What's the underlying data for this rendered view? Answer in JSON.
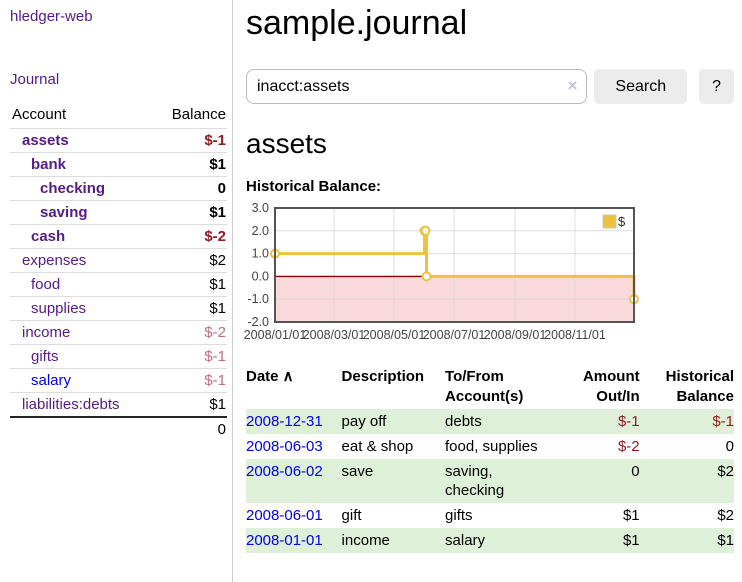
{
  "colors": {
    "link_purple": "#551a8b",
    "link_blue": "#0000ee",
    "negative_strong": "#8f1d21",
    "negative_soft": "#c1707c",
    "row_green": "#dff0d8",
    "button_bg": "#ececec",
    "chart_line_gold": "#edc240",
    "chart_negative_fill": "#f9d9d9",
    "chart_zero_line": "#8b0000",
    "chart_border": "#545454",
    "chart_grid": "#dcdcdc"
  },
  "sidebar": {
    "app_title": "hledger-web",
    "journal_link": "Journal",
    "accounts_table": {
      "headers": [
        "Account",
        "Balance"
      ],
      "rows": [
        {
          "account": "assets",
          "balance": "$-1",
          "indent": 1,
          "bold": true,
          "balance_style": "negative_strong"
        },
        {
          "account": "bank",
          "balance": "$1",
          "indent": 2,
          "bold": true,
          "balance_style": "normal"
        },
        {
          "account": "checking",
          "balance": "0",
          "indent": 3,
          "bold": true,
          "balance_style": "normal"
        },
        {
          "account": "saving",
          "balance": "$1",
          "indent": 3,
          "bold": true,
          "balance_style": "normal"
        },
        {
          "account": "cash",
          "balance": "$-2",
          "indent": 2,
          "bold": true,
          "balance_style": "negative_strong"
        },
        {
          "account": "expenses",
          "balance": "$2",
          "indent": 1,
          "bold": false,
          "balance_style": "normal"
        },
        {
          "account": "food",
          "balance": "$1",
          "indent": 2,
          "bold": false,
          "balance_style": "normal"
        },
        {
          "account": "supplies",
          "balance": "$1",
          "indent": 2,
          "bold": false,
          "balance_style": "normal"
        },
        {
          "account": "income",
          "balance": "$-2",
          "indent": 1,
          "bold": false,
          "balance_style": "negative_soft"
        },
        {
          "account": "gifts",
          "balance": "$-1",
          "indent": 2,
          "bold": false,
          "balance_style": "negative_soft"
        },
        {
          "account": "salary",
          "balance": "$-1",
          "indent": 2,
          "bold": false,
          "balance_style": "negative_soft",
          "link_style": "blue"
        },
        {
          "account": "liabilities:debts",
          "balance": "$1",
          "indent": 1,
          "bold": false,
          "balance_style": "normal"
        }
      ],
      "total": "0"
    }
  },
  "header": {
    "title": "sample.journal",
    "search": {
      "value": "inacct:assets",
      "clear_icon": "×",
      "button_label": "Search",
      "help_label": "?"
    }
  },
  "main": {
    "account_heading": "assets",
    "chart_title": "Historical Balance:"
  },
  "chart_data": {
    "type": "line",
    "step": true,
    "title": "Historical Balance of assets",
    "grid": true,
    "negative_region_shaded": true,
    "legend_position": "top-right",
    "legend": [
      {
        "label": "$",
        "color": "#edc240"
      }
    ],
    "ylim": [
      -2,
      3
    ],
    "yticks": [
      {
        "value": 3,
        "label": "3.0"
      },
      {
        "value": 2,
        "label": "2.0"
      },
      {
        "value": 1,
        "label": "1.0"
      },
      {
        "value": 0,
        "label": "0.0"
      },
      {
        "value": -1,
        "label": "-1.0"
      },
      {
        "value": -2,
        "label": "-2.0"
      }
    ],
    "xrange": [
      "2008-01-01",
      "2008-12-31"
    ],
    "xticks": [
      {
        "date": "2008-01-01",
        "label": "2008/01/01"
      },
      {
        "date": "2008-03-01",
        "label": "2008/03/01"
      },
      {
        "date": "2008-05-01",
        "label": "2008/05/01"
      },
      {
        "date": "2008-07-01",
        "label": "2008/07/01"
      },
      {
        "date": "2008-09-01",
        "label": "2008/09/01"
      },
      {
        "date": "2008-11-01",
        "label": "2008/11/01"
      }
    ],
    "series": [
      {
        "name": "$",
        "points": [
          [
            "2008-01-01",
            1
          ],
          [
            "2008-06-01",
            2
          ],
          [
            "2008-06-02",
            2
          ],
          [
            "2008-06-03",
            0
          ],
          [
            "2008-12-31",
            -1
          ]
        ]
      }
    ]
  },
  "register_table": {
    "columns": [
      {
        "label": "Date",
        "sort_indicator": "∧",
        "align": "left"
      },
      {
        "label": "Description",
        "align": "left"
      },
      {
        "label": "To/From Account(s)",
        "align": "left"
      },
      {
        "label": "Amount Out/In",
        "align": "right"
      },
      {
        "label": "Historical Balance",
        "align": "right"
      }
    ],
    "rows": [
      {
        "date": "2008-12-31",
        "description": "pay off",
        "accounts": "debts",
        "amount": "$-1",
        "amount_negative": true,
        "balance": "$-1",
        "balance_negative": true,
        "highlight": true
      },
      {
        "date": "2008-06-03",
        "description": "eat & shop",
        "accounts": "food, supplies",
        "amount": "$-2",
        "amount_negative": true,
        "balance": "0",
        "balance_negative": false,
        "highlight": false
      },
      {
        "date": "2008-06-02",
        "description": "save",
        "accounts": "saving, checking",
        "amount": "0",
        "amount_negative": false,
        "balance": "$2",
        "balance_negative": false,
        "highlight": true
      },
      {
        "date": "2008-06-01",
        "description": "gift",
        "accounts": "gifts",
        "amount": "$1",
        "amount_negative": false,
        "balance": "$2",
        "balance_negative": false,
        "highlight": false
      },
      {
        "date": "2008-01-01",
        "description": "income",
        "accounts": "salary",
        "amount": "$1",
        "amount_negative": false,
        "balance": "$1",
        "balance_negative": false,
        "highlight": true
      }
    ]
  }
}
